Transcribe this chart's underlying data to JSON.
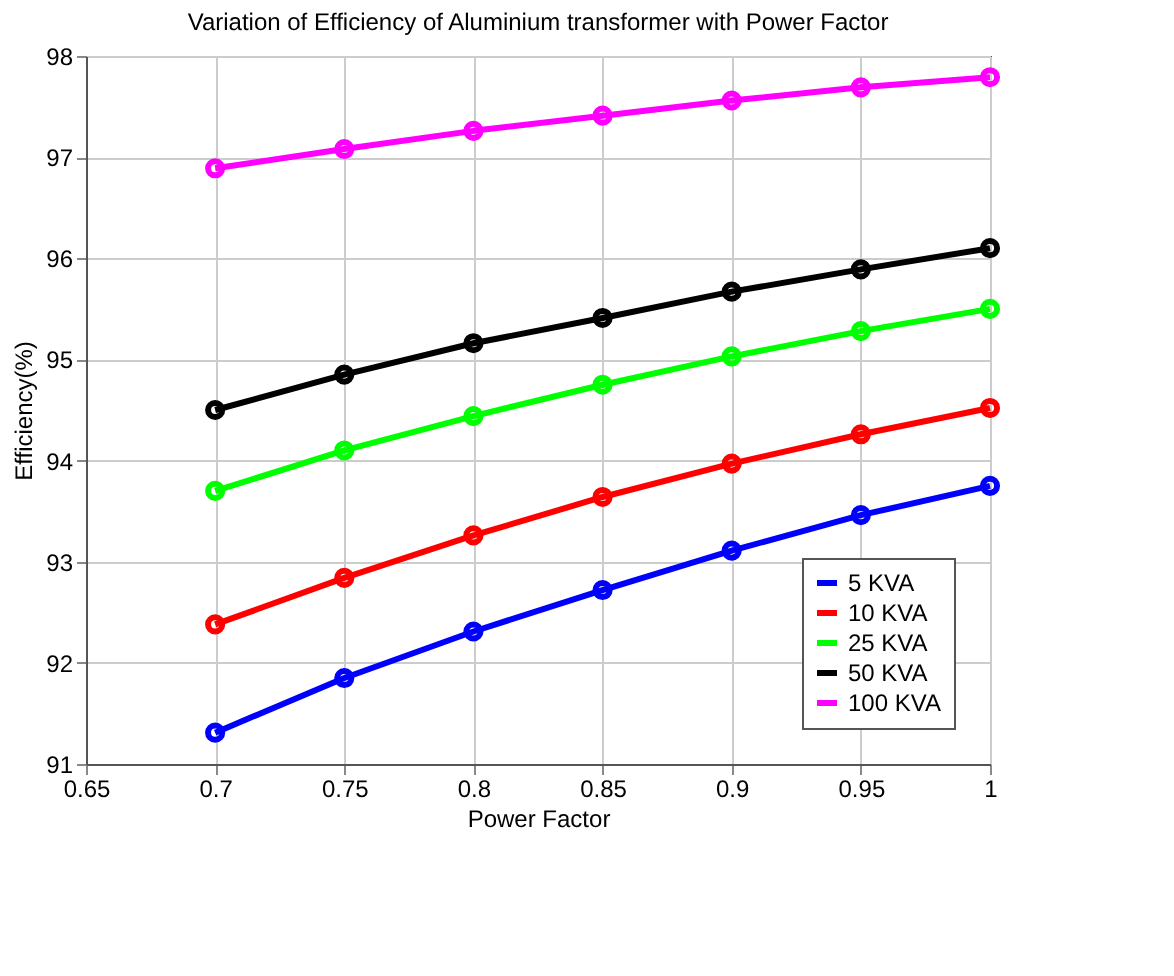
{
  "chart_data": {
    "type": "line",
    "title": "Variation of Efficiency of Aluminium transformer with Power Factor",
    "xlabel": "Power Factor",
    "ylabel": "Efficiency(%)",
    "x": [
      0.7,
      0.75,
      0.8,
      0.85,
      0.9,
      0.95,
      1.0
    ],
    "series": [
      {
        "name": "5 KVA",
        "color": "#0000ff",
        "values": [
          91.31,
          91.85,
          92.31,
          92.72,
          93.11,
          93.46,
          93.75
        ]
      },
      {
        "name": "10 KVA",
        "color": "#ff0000",
        "values": [
          92.38,
          92.84,
          93.26,
          93.64,
          93.97,
          94.26,
          94.52
        ]
      },
      {
        "name": "25 KVA",
        "color": "#00ff00",
        "values": [
          93.7,
          94.1,
          94.44,
          94.75,
          95.03,
          95.28,
          95.5
        ]
      },
      {
        "name": "50 KVA",
        "color": "#000000",
        "values": [
          94.5,
          94.85,
          95.16,
          95.41,
          95.67,
          95.89,
          96.1
        ]
      },
      {
        "name": "100 KVA",
        "color": "#ff00ff",
        "values": [
          96.89,
          97.08,
          97.26,
          97.41,
          97.56,
          97.69,
          97.79
        ]
      }
    ],
    "xlim": [
      0.65,
      1.0
    ],
    "xticks": [
      0.65,
      0.7,
      0.75,
      0.8,
      0.85,
      0.9,
      0.95,
      1
    ],
    "ylim": [
      91,
      98
    ],
    "yticks": [
      91,
      92,
      93,
      94,
      95,
      96,
      97,
      98
    ],
    "grid": true,
    "legend": "bottom right",
    "marker": "circle",
    "line_style": "solid"
  }
}
